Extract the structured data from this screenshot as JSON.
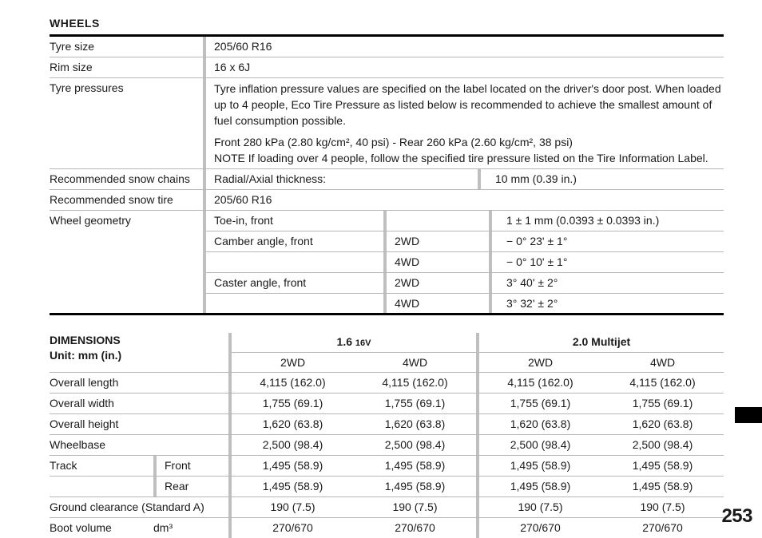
{
  "pageNumber": "253",
  "wheels": {
    "title": "WHEELS",
    "rows": {
      "tyreSizeLabel": "Tyre size",
      "tyreSize": "205/60 R16",
      "rimSizeLabel": "Rim size",
      "rimSize": "16 x 6J",
      "tyrePressLabel": "Tyre pressures",
      "tyrePressPara1": "Tyre inflation pressure values are specified on the label located on the driver's door post. When loaded up to 4 people, Eco Tire Pressure as listed below is recommended to achieve the smallest amount of fuel consumption possible.",
      "tyrePressPara2a": "Front 280 kPa (2.80 kg/cm², 40 psi) - Rear 260 kPa (2.60 kg/cm², 38 psi)",
      "tyrePressPara2b": "NOTE If loading over 4 people, follow the specified tire pressure listed on the Tire Information Label.",
      "snowChainsLabel": "Recommended snow chains",
      "snowChainsLeft": "Radial/Axial thickness:",
      "snowChainsRight": "10 mm (0.39 in.)",
      "snowTireLabel": "Recommended snow tire",
      "snowTire": "205/60 R16",
      "wheelGeoLabel": "Wheel geometry",
      "geo": {
        "toeInLabel": "Toe-in, front",
        "toeInVal": "1 ± 1 mm (0.0393 ± 0.0393 in.)",
        "camberLabel": "Camber angle, front",
        "camber2wdKey": "2WD",
        "camber2wd": "− 0° 23' ± 1°",
        "camber4wdKey": "4WD",
        "camber4wd": "− 0° 10' ± 1°",
        "casterLabel": "Caster angle, front",
        "caster2wdKey": "2WD",
        "caster2wd": "3° 40' ± 2°",
        "caster4wdKey": "4WD",
        "caster4wd": "3° 32' ± 2°"
      }
    }
  },
  "dimensions": {
    "title": "DIMENSIONS",
    "unitLabel": "Unit: mm (in.)",
    "engines": {
      "e1": "1.6 ",
      "e1suffix": "16V",
      "e2": "2.0 Multijet"
    },
    "driveLabels": {
      "d2": "2WD",
      "d4": "4WD"
    },
    "rows": [
      {
        "label": "Overall length",
        "sub": "",
        "vals": [
          "4,115 (162.0)",
          "4,115 (162.0)",
          "4,115 (162.0)",
          "4,115 (162.0)"
        ]
      },
      {
        "label": "Overall width",
        "sub": "",
        "vals": [
          "1,755 (69.1)",
          "1,755 (69.1)",
          "1,755 (69.1)",
          "1,755 (69.1)"
        ]
      },
      {
        "label": "Overall height",
        "sub": "",
        "vals": [
          "1,620 (63.8)",
          "1,620 (63.8)",
          "1,620 (63.8)",
          "1,620 (63.8)"
        ]
      },
      {
        "label": "Wheelbase",
        "sub": "",
        "vals": [
          "2,500 (98.4)",
          "2,500 (98.4)",
          "2,500 (98.4)",
          "2,500 (98.4)"
        ]
      },
      {
        "label": "Track",
        "sub": "Front",
        "vals": [
          "1,495 (58.9)",
          "1,495 (58.9)",
          "1,495 (58.9)",
          "1,495 (58.9)"
        ]
      },
      {
        "label": "",
        "sub": "Rear",
        "vals": [
          "1,495 (58.9)",
          "1,495 (58.9)",
          "1,495 (58.9)",
          "1,495 (58.9)"
        ]
      },
      {
        "label": "Ground clearance (Standard A)",
        "sub": "",
        "vals": [
          "190 (7.5)",
          "190 (7.5)",
          "190 (7.5)",
          "190 (7.5)"
        ]
      },
      {
        "label": "Boot volume",
        "sub": "dm³",
        "vals": [
          "270/670",
          "270/670",
          "270/670",
          "270/670"
        ]
      }
    ]
  }
}
